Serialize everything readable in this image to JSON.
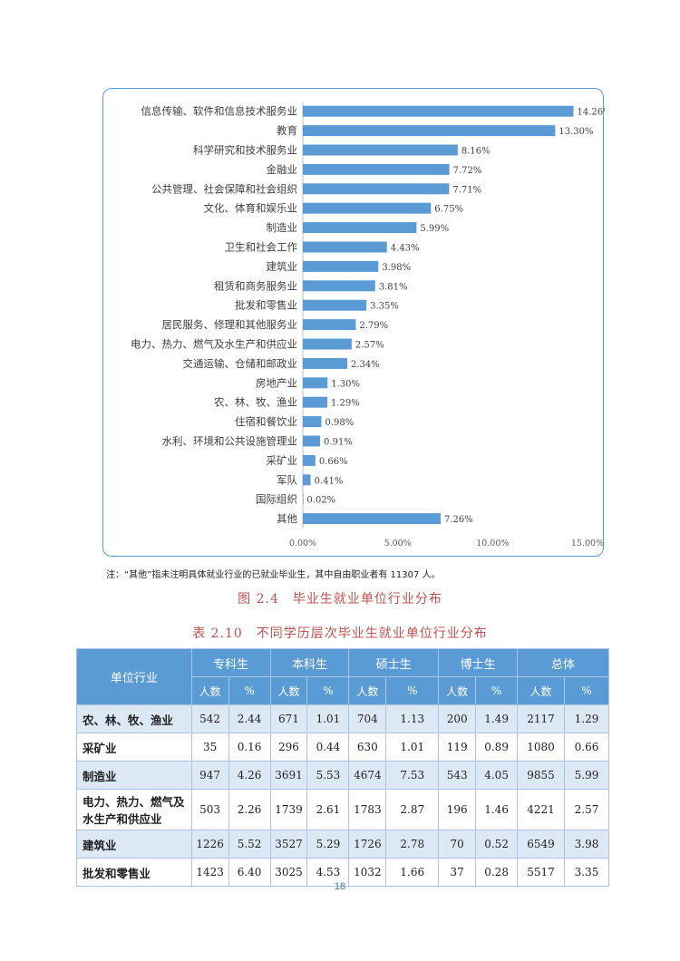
{
  "chart_data": {
    "type": "bar",
    "orientation": "horizontal",
    "categories": [
      "信息传输、软件和信息技术服务业",
      "教育",
      "科学研究和技术服务业",
      "金融业",
      "公共管理、社会保障和社会组织",
      "文化、体育和娱乐业",
      "制造业",
      "卫生和社会工作",
      "建筑业",
      "租赁和商务服务业",
      "批发和零售业",
      "居民服务、修理和其他服务业",
      "电力、热力、燃气及水生产和供应业",
      "交通运输、仓储和邮政业",
      "房地产业",
      "农、林、牧、渔业",
      "住宿和餐饮业",
      "水利、环境和公共设施管理业",
      "采矿业",
      "军队",
      "国际组织",
      "其他"
    ],
    "values": [
      14.26,
      13.3,
      8.16,
      7.72,
      7.71,
      6.75,
      5.99,
      4.43,
      3.98,
      3.81,
      3.35,
      2.79,
      2.57,
      2.34,
      1.3,
      1.29,
      0.98,
      0.91,
      0.66,
      0.41,
      0.02,
      7.26
    ],
    "value_labels": [
      "14.26%",
      "13.30%",
      "8.16%",
      "7.72%",
      "7.71%",
      "6.75%",
      "5.99%",
      "4.43%",
      "3.98%",
      "3.81%",
      "3.35%",
      "2.79%",
      "2.57%",
      "2.34%",
      "1.30%",
      "1.29%",
      "0.98%",
      "0.91%",
      "0.66%",
      "0.41%",
      "0.02%",
      "7.26%"
    ],
    "x_ticks": [
      "0.00%",
      "5.00%",
      "10.00%",
      "15.00%"
    ],
    "xlim": [
      0,
      15
    ],
    "bar_color": "#5b9bd5",
    "grid": false,
    "title": "",
    "xlabel": "",
    "ylabel": ""
  },
  "note": "注：“其他”指未注明具体就业行业的已就业毕业生，其中自由职业者有 11307 人。",
  "figure_caption": "图 2.4　毕业生就业单位行业分布",
  "table_caption": "表 2.10　不同学历层次毕业生就业单位行业分布",
  "table": {
    "industry_header": "单位行业",
    "groups": [
      "专科生",
      "本科生",
      "硕士生",
      "博士生",
      "总体"
    ],
    "sub_headers": [
      "人数",
      "%"
    ],
    "rows": [
      {
        "industry": "农、林、牧、渔业",
        "cells": [
          "542",
          "2.44",
          "671",
          "1.01",
          "704",
          "1.13",
          "200",
          "1.49",
          "2117",
          "1.29"
        ]
      },
      {
        "industry": "采矿业",
        "cells": [
          "35",
          "0.16",
          "296",
          "0.44",
          "630",
          "1.01",
          "119",
          "0.89",
          "1080",
          "0.66"
        ]
      },
      {
        "industry": "制造业",
        "cells": [
          "947",
          "4.26",
          "3691",
          "5.53",
          "4674",
          "7.53",
          "543",
          "4.05",
          "9855",
          "5.99"
        ]
      },
      {
        "industry": "电力、热力、燃气及水生产和供应业",
        "cells": [
          "503",
          "2.26",
          "1739",
          "2.61",
          "1783",
          "2.87",
          "196",
          "1.46",
          "4221",
          "2.57"
        ]
      },
      {
        "industry": "建筑业",
        "cells": [
          "1226",
          "5.52",
          "3527",
          "5.29",
          "1726",
          "2.78",
          "70",
          "0.52",
          "6549",
          "3.98"
        ]
      },
      {
        "industry": "批发和零售业",
        "cells": [
          "1423",
          "6.40",
          "3025",
          "4.53",
          "1032",
          "1.66",
          "37",
          "0.28",
          "5517",
          "3.35"
        ]
      }
    ]
  },
  "page_number": "18",
  "colors": {
    "accent": "#5b9bd5",
    "caption": "#c0504d",
    "row_shade": "#dde8f5"
  }
}
